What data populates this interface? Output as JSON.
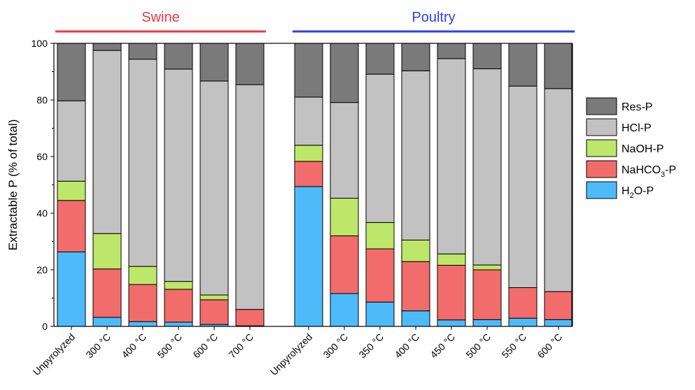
{
  "chart_data": {
    "type": "bar",
    "stacked": true,
    "ylabel": "Extractable P (% of total)",
    "ylim": [
      0,
      100
    ],
    "yticks": [
      0,
      20,
      40,
      60,
      80,
      100
    ],
    "grid": false,
    "legend_position": "right",
    "groups": [
      {
        "name": "Swine",
        "color": "#f0383c",
        "categories": [
          "Unpyrolyzed",
          "300 °C",
          "400 °C",
          "500 °C",
          "600 °C",
          "700 °C"
        ]
      },
      {
        "name": "Poultry",
        "color": "#2b3ff0",
        "categories": [
          "Unpyrolyzed",
          "300 °C",
          "350 °C",
          "400 °C",
          "450 °C",
          "500 °C",
          "550 °C",
          "600 °C"
        ]
      }
    ],
    "series": [
      {
        "name": "H2O-P",
        "label_base": "H",
        "label_sub": "2",
        "label_rest": "O-P",
        "color": "#4dbbf9",
        "values": [
          26.3,
          3.2,
          1.7,
          1.5,
          0.7,
          0.2,
          49.4,
          11.6,
          8.6,
          5.5,
          2.3,
          2.4,
          2.9,
          2.4
        ]
      },
      {
        "name": "NaHCO3-P",
        "label_base": "NaHCO",
        "label_sub": "3",
        "label_rest": "-P",
        "color": "#f36c6c",
        "values": [
          18.2,
          17.1,
          13.1,
          11.6,
          8.7,
          5.8,
          8.9,
          20.4,
          18.8,
          17.4,
          19.3,
          17.6,
          10.8,
          9.9
        ]
      },
      {
        "name": "NaOH-P",
        "label_base": "NaOH-P",
        "label_sub": "",
        "label_rest": "",
        "color": "#bde76a",
        "values": [
          6.8,
          12.5,
          6.4,
          2.8,
          1.7,
          0,
          5.7,
          13.3,
          9.3,
          7.6,
          4.0,
          1.7,
          0,
          0
        ]
      },
      {
        "name": "HCl-P",
        "label_base": "HCl-P",
        "label_sub": "",
        "label_rest": "",
        "color": "#c2c2c2",
        "values": [
          28.4,
          64.7,
          73.2,
          75.0,
          75.6,
          79.4,
          17.0,
          33.8,
          52.4,
          59.8,
          69.0,
          69.3,
          71.2,
          71.7
        ]
      },
      {
        "name": "Res-P",
        "label_base": "Res-P",
        "label_sub": "",
        "label_rest": "",
        "color": "#7a7a7a",
        "values": [
          20.3,
          2.5,
          5.6,
          9.1,
          13.3,
          14.6,
          19.0,
          20.9,
          10.9,
          9.7,
          5.4,
          9.0,
          15.1,
          16.0
        ]
      }
    ],
    "legend_order": [
      "Res-P",
      "HCl-P",
      "NaOH-P",
      "NaHCO3-P",
      "H2O-P"
    ]
  }
}
